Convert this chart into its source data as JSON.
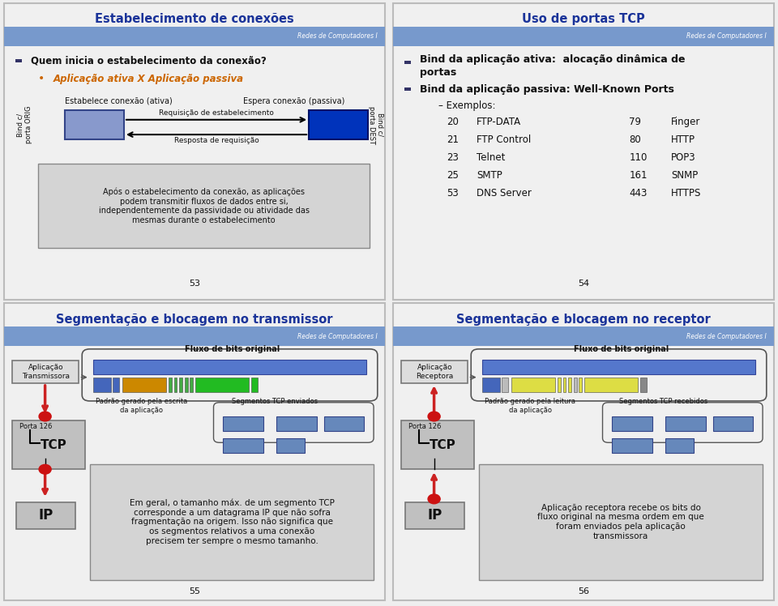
{
  "bg_color": "#eeeeee",
  "panel_bg": "#f0f0f0",
  "divider_color": "#bbbbbb",
  "header_bar_color": "#7799cc",
  "title_color": "#1a3399",
  "subtitle_color": "#cc6600",
  "body_color": "#111111",
  "redes_text": "Redes de Computadores I",
  "panel1": {
    "title": "Estabelecimento de conexões",
    "bullet1": "Quem inicia o estabelecimento da conexão?",
    "bullet1_sub": "Aplicação ativa X Aplicação passiva",
    "label_ativa": "Estabelece conexão (ativa)",
    "label_passiva": "Espera conexão (passiva)",
    "bind_orig": "Bind c/\nporta ORIG",
    "bind_dest": "Bind c/\nporta DEST",
    "req_label": "Requisição de estabelecimento",
    "resp_label": "Resposta de requisição",
    "box_text": "Após o estabelecimento da conexão, as aplicações\npodem transmitir fluxos de dados entre si,\nindependentemente da passividade ou atividade das\nmesmas durante o estabelecimento",
    "page": "53"
  },
  "panel2": {
    "title": "Uso de portas TCP",
    "bullet1_line1": "Bind da aplicação ativa:  alocação dinâmica de",
    "bullet1_line2": "portas",
    "bullet2": "Bind da aplicação passiva: Well-Known Ports",
    "exemplos": "– Exemplos:",
    "ports_left_nums": [
      "20",
      "21",
      "23",
      "25",
      "53"
    ],
    "ports_left_names": [
      "FTP-DATA",
      "FTP Control",
      "Telnet",
      "SMTP",
      "DNS Server"
    ],
    "ports_right_nums": [
      "79",
      "80",
      "110",
      "161",
      "443"
    ],
    "ports_right_names": [
      "Finger",
      "HTTP",
      "POP3",
      "SNMP",
      "HTTPS"
    ],
    "page": "54"
  },
  "panel3": {
    "title": "Segmentação e blocagem no transmissor",
    "fluxo_label": "Fluxo de bits original",
    "padrao_label": "Padrão gerado pela escrita\nda aplicação",
    "segmentos_label": "Segmentos TCP enviados",
    "app_label": "Aplicação\nTransmissora",
    "porta_label": "Porta 126",
    "tcp_label": "TCP",
    "ip_label": "IP",
    "box_text": "Em geral, o tamanho máx. de um segmento TCP\ncorresponde a um datagrama IP que não sofra\nfragmentação na origem. Isso não significa que\nos segmentos relativos a uma conexão\nprecisem ter sempre o mesmo tamanho.",
    "page": "55",
    "seg2_colors": [
      "#4466bb",
      "#4466bb",
      "#cc8800",
      "#44aa44",
      "#44aa44",
      "#44aa44",
      "#44aa44",
      "#44aa44",
      "#22bb22",
      "#22bb22"
    ]
  },
  "panel4": {
    "title": "Segmentação e blocagem no receptor",
    "fluxo_label": "Fluxo de bits original",
    "padrao_label": "Padrão gerado pela leitura\nda aplicação",
    "segmentos_label": "Segmentos TCP recebidos",
    "app_label": "Aplicação\nReceptora",
    "porta_label": "Porta 126",
    "tcp_label": "TCP",
    "ip_label": "IP",
    "box_text": "Aplicação receptora recebe os bits do\nfluxo original na mesma ordem em que\nforam enviados pela aplicação\ntransmissora",
    "page": "56",
    "seg2_colors": [
      "#4466bb",
      "#bbbbbb",
      "#dddd44",
      "#dddd44",
      "#dddd44",
      "#dddd44",
      "#bbbbbb",
      "#dddd44",
      "#dddd44"
    ]
  }
}
